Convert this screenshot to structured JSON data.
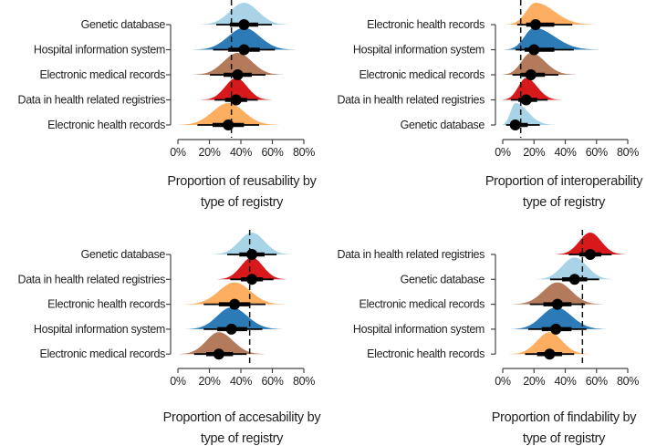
{
  "chart_data": [
    {
      "type": "halfeye",
      "title_lines": [
        "Proportion of reusability by",
        "type of registry"
      ],
      "xlabel": "",
      "ylabel": "",
      "xlim": [
        0,
        0.8
      ],
      "xticks": [
        0,
        0.2,
        0.4,
        0.6,
        0.8
      ],
      "xtick_labels": [
        "0%",
        "20%",
        "40%",
        "60%",
        "80%"
      ],
      "reference_line": 0.34,
      "categories": [
        "Genetic database",
        "Hospital information system",
        "Electronic medical records",
        "Data in health related registries",
        "Electronic health records"
      ],
      "values": [
        0.42,
        0.42,
        0.38,
        0.37,
        0.32
      ],
      "spread_low": [
        0.09,
        0.1,
        0.09,
        0.07,
        0.1
      ],
      "spread_high": [
        0.09,
        0.1,
        0.09,
        0.07,
        0.1
      ],
      "colors": [
        "#a9d4e8",
        "#2c7bb6",
        "#b47a5c",
        "#d7191c",
        "#fdae61"
      ]
    },
    {
      "type": "halfeye",
      "title_lines": [
        "Proportion of interoperability",
        "type of registry"
      ],
      "xlabel": "",
      "ylabel": "",
      "xlim": [
        0,
        0.8
      ],
      "xticks": [
        0,
        0.2,
        0.4,
        0.6,
        0.8
      ],
      "xtick_labels": [
        "0%",
        "20%",
        "40%",
        "60%",
        "80%"
      ],
      "reference_line": 0.115,
      "categories": [
        "Electronic health records",
        "Hospital information system",
        "Electronic medical records",
        "Data in health related registries",
        "Genetic database"
      ],
      "values": [
        0.21,
        0.2,
        0.18,
        0.15,
        0.08
      ],
      "spread_low": [
        0.06,
        0.06,
        0.06,
        0.05,
        0.03
      ],
      "spread_high": [
        0.12,
        0.13,
        0.09,
        0.07,
        0.08
      ],
      "colors": [
        "#fdae61",
        "#2c7bb6",
        "#b47a5c",
        "#d7191c",
        "#a9d4e8"
      ]
    },
    {
      "type": "halfeye",
      "title_lines": [
        "Proportion of accesability by",
        "type of registry"
      ],
      "xlabel": "",
      "ylabel": "",
      "xlim": [
        0,
        0.8
      ],
      "xticks": [
        0,
        0.2,
        0.4,
        0.6,
        0.8
      ],
      "xtick_labels": [
        "0%",
        "20%",
        "40%",
        "60%",
        "80%"
      ],
      "reference_line": 0.456,
      "categories": [
        "Genetic database",
        "Data in health related registries",
        "Electronic health records",
        "Hospital information system",
        "Electronic medical records"
      ],
      "values": [
        0.47,
        0.47,
        0.36,
        0.34,
        0.26
      ],
      "spread_low": [
        0.08,
        0.07,
        0.1,
        0.09,
        0.08
      ],
      "spread_high": [
        0.08,
        0.07,
        0.1,
        0.1,
        0.09
      ],
      "colors": [
        "#a9d4e8",
        "#d7191c",
        "#fdae61",
        "#2c7bb6",
        "#b47a5c"
      ]
    },
    {
      "type": "halfeye",
      "title_lines": [
        "Proportion of findability by",
        "type of registry"
      ],
      "xlabel": "",
      "ylabel": "",
      "xlim": [
        0,
        0.8
      ],
      "xticks": [
        0,
        0.2,
        0.4,
        0.6,
        0.8
      ],
      "xtick_labels": [
        "0%",
        "20%",
        "40%",
        "60%",
        "80%"
      ],
      "reference_line": 0.51,
      "categories": [
        "Data in health related registries",
        "Genetic database",
        "Electronic medical records",
        "Hospital information system",
        "Electronic health records"
      ],
      "values": [
        0.56,
        0.46,
        0.35,
        0.34,
        0.3
      ],
      "spread_low": [
        0.07,
        0.08,
        0.09,
        0.09,
        0.08
      ],
      "spread_high": [
        0.07,
        0.08,
        0.09,
        0.1,
        0.08
      ],
      "colors": [
        "#d7191c",
        "#a9d4e8",
        "#b47a5c",
        "#2c7bb6",
        "#fdae61"
      ]
    }
  ]
}
